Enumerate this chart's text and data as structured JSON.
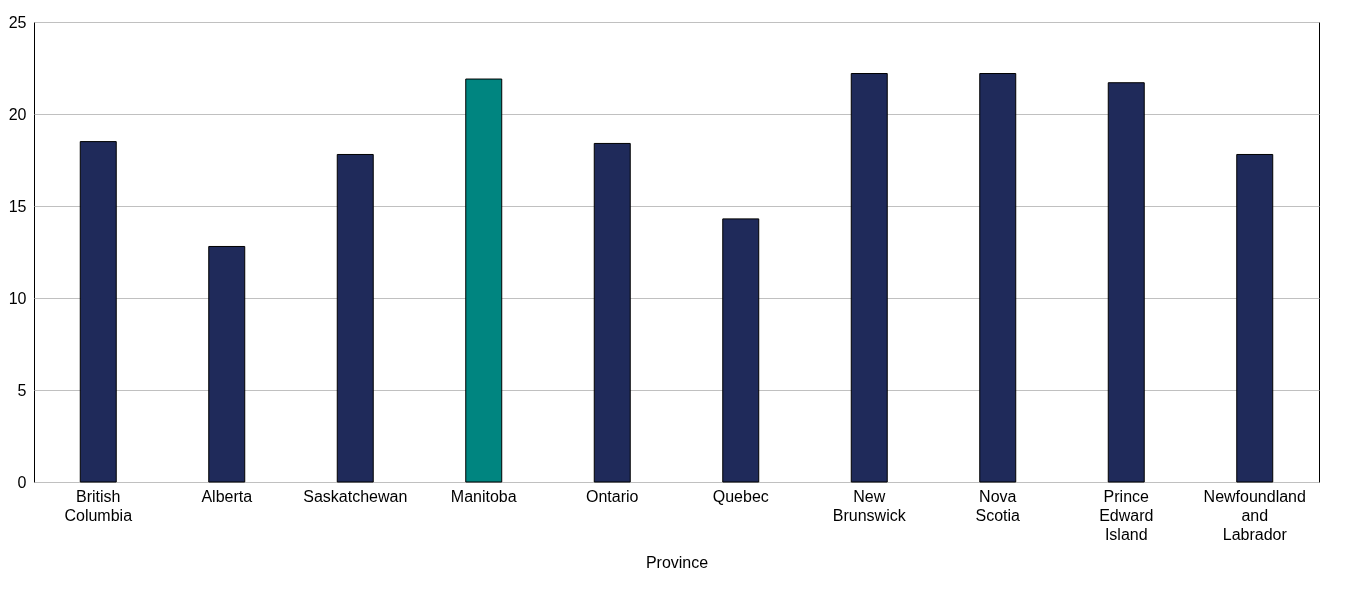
{
  "chart_data": {
    "type": "bar",
    "xlabel": "Province",
    "categories": [
      "British Columbia",
      "Alberta",
      "Saskatchewan",
      "Manitoba",
      "Ontario",
      "Quebec",
      "New Brunswick",
      "Nova Scotia",
      "Prince Edward Island",
      "Newfoundland and Labrador"
    ],
    "values": [
      18.5,
      12.8,
      17.8,
      21.9,
      18.4,
      14.3,
      22.2,
      22.2,
      21.7,
      17.8
    ],
    "colors": [
      "#1f2a5a",
      "#1f2a5a",
      "#1f2a5a",
      "#008580",
      "#1f2a5a",
      "#1f2a5a",
      "#1f2a5a",
      "#1f2a5a",
      "#1f2a5a",
      "#1f2a5a"
    ],
    "ylim": [
      0,
      25
    ],
    "yticks": [
      0,
      5,
      10,
      15,
      20,
      25
    ],
    "grid": "y"
  }
}
